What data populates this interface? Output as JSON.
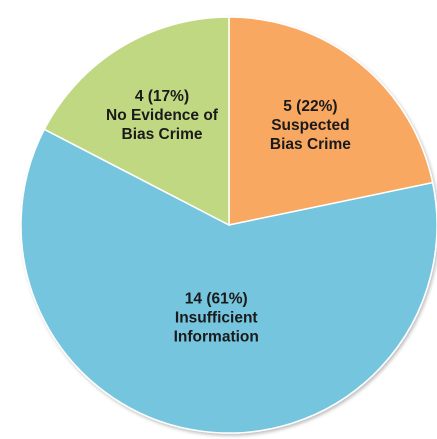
{
  "chart_data": {
    "type": "pie",
    "title": "",
    "slices": [
      {
        "value": 5,
        "percent": 22,
        "label_lines": [
          "5 (22%)",
          "Suspected",
          "Bias Crime"
        ],
        "color": "#f9a862"
      },
      {
        "value": 14,
        "percent": 61,
        "label_lines": [
          "14 (61%)",
          "Insufficient",
          "Information"
        ],
        "color": "#74c5de"
      },
      {
        "value": 4,
        "percent": 17,
        "label_lines": [
          "4 (17%)",
          "No Evidence of",
          "Bias Crime"
        ],
        "color": "#c1d882"
      }
    ],
    "start_angle_deg": 0,
    "direction": "clockwise",
    "legend": "none"
  }
}
